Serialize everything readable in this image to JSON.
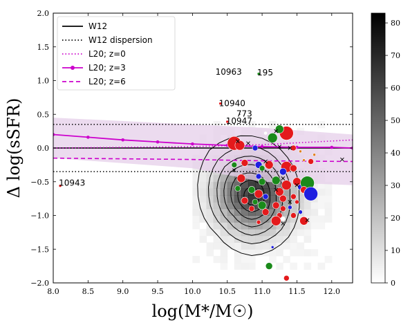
{
  "chart_data": {
    "type": "scatter",
    "xlabel": "log(M*/M☉)",
    "ylabel": "Δ log(sSFR)",
    "xlim": [
      8.0,
      12.3
    ],
    "ylim": [
      -2.0,
      2.0
    ],
    "xticks": [
      8.0,
      8.5,
      9.0,
      9.5,
      10.0,
      10.5,
      11.0,
      11.5,
      12.0
    ],
    "yticks": [
      -2.0,
      -1.5,
      -1.0,
      -0.5,
      0.0,
      0.5,
      1.0,
      1.5,
      2.0
    ],
    "colorbar": {
      "min": 0,
      "max": 83,
      "ticks": [
        0,
        10,
        20,
        30,
        40,
        50,
        60,
        70,
        80
      ],
      "cmap": "Greys"
    },
    "legend": {
      "placement": "top-left",
      "entries": [
        {
          "label": "W12",
          "style": "solid",
          "color": "#000000"
        },
        {
          "label": "W12 dispersion",
          "style": "dotted",
          "color": "#000000"
        },
        {
          "label": "L20; z=0",
          "style": "dotted",
          "color": "#cc00cc"
        },
        {
          "label": "L20; z=3",
          "style": "solid-marker",
          "color": "#cc00cc"
        },
        {
          "label": "L20; z=6",
          "style": "dashed",
          "color": "#cc00cc"
        }
      ]
    },
    "lines": {
      "w12": {
        "y": 0.0
      },
      "w12_dispersion": [
        0.35,
        -0.35
      ],
      "l20_z0": {
        "x": [
          8.0,
          10.0,
          11.0,
          12.3
        ],
        "y": [
          0.0,
          0.02,
          0.05,
          0.12
        ]
      },
      "l20_z3": {
        "x": [
          8.0,
          8.5,
          9.0,
          9.5,
          10.0,
          10.5,
          11.0,
          11.5,
          12.0,
          12.3
        ],
        "y": [
          0.2,
          0.16,
          0.12,
          0.09,
          0.06,
          0.04,
          0.02,
          0.01,
          0.01,
          0.0
        ]
      },
      "l20_z6": {
        "x": [
          8.0,
          9.0,
          10.0,
          11.0,
          12.3
        ],
        "y": [
          -0.15,
          -0.16,
          -0.17,
          -0.19,
          -0.2
        ]
      },
      "band": {
        "x": [
          8.0,
          10.0,
          11.0,
          12.3
        ],
        "upper": [
          0.45,
          0.35,
          0.3,
          0.2
        ],
        "lower": [
          -0.15,
          -0.3,
          -0.5,
          -0.55
        ]
      }
    },
    "annotations": [
      {
        "text": "10963",
        "x": 10.35,
        "y": 1.13
      },
      {
        "text": "195",
        "x": 10.95,
        "y": 1.12
      },
      {
        "text": "10940",
        "x": 10.4,
        "y": 0.66
      },
      {
        "text": "773",
        "x": 10.65,
        "y": 0.51
      },
      {
        "text": "10947",
        "x": 10.5,
        "y": 0.4
      },
      {
        "text": "10943",
        "x": 8.1,
        "y": -0.52
      }
    ],
    "contours": [
      {
        "level": 1,
        "r": [
          0.62,
          0.66,
          0.72,
          0.78,
          0.7,
          0.64,
          0.7,
          0.68
        ]
      },
      {
        "level": 2,
        "r": [
          0.5,
          0.54,
          0.6,
          0.62,
          0.56,
          0.52,
          0.56,
          0.55
        ]
      },
      {
        "level": 3,
        "r": [
          0.4,
          0.44,
          0.48,
          0.5,
          0.45,
          0.42,
          0.46,
          0.44
        ]
      },
      {
        "level": 4,
        "r": [
          0.32,
          0.35,
          0.38,
          0.4,
          0.36,
          0.33,
          0.36,
          0.35
        ]
      },
      {
        "level": 5,
        "r": [
          0.24,
          0.26,
          0.28,
          0.3,
          0.27,
          0.25,
          0.27,
          0.26
        ]
      },
      {
        "level": 6,
        "r": [
          0.16,
          0.18,
          0.19,
          0.2,
          0.18,
          0.17,
          0.18,
          0.18
        ]
      },
      {
        "level": 7,
        "r": [
          0.09,
          0.1,
          0.11,
          0.11,
          0.1,
          0.09,
          0.1,
          0.1
        ]
      }
    ],
    "contour_center": {
      "x": 10.85,
      "y": -0.72
    },
    "points": [
      {
        "x": 8.1,
        "y": -0.56,
        "c": "red",
        "s": 2
      },
      {
        "x": 10.4,
        "y": 0.66,
        "c": "red",
        "s": 2
      },
      {
        "x": 10.5,
        "y": 0.39,
        "c": "red",
        "s": 2
      },
      {
        "x": 10.37,
        "y": 1.12,
        "c": "black",
        "s": 1
      },
      {
        "x": 10.95,
        "y": 1.1,
        "c": "green",
        "s": 2
      },
      {
        "x": 10.68,
        "y": 0.5,
        "c": "black",
        "s": 1
      },
      {
        "x": 10.6,
        "y": 0.07,
        "c": "red",
        "s": 10
      },
      {
        "x": 10.68,
        "y": 0.04,
        "c": "red",
        "s": 7
      },
      {
        "x": 11.35,
        "y": 0.22,
        "c": "red",
        "s": 10
      },
      {
        "x": 11.15,
        "y": 0.15,
        "c": "green",
        "s": 7
      },
      {
        "x": 11.25,
        "y": 0.28,
        "c": "green",
        "s": 6
      },
      {
        "x": 11.05,
        "y": 0.22,
        "c": "white",
        "s": 2
      },
      {
        "x": 10.9,
        "y": 0.0,
        "c": "blue",
        "s": 4
      },
      {
        "x": 11.45,
        "y": 0.0,
        "c": "red",
        "s": 4
      },
      {
        "x": 11.55,
        "y": -0.05,
        "c": "orange",
        "s": 2
      },
      {
        "x": 10.95,
        "y": -0.25,
        "c": "blue",
        "s": 5
      },
      {
        "x": 10.6,
        "y": -0.25,
        "c": "green",
        "s": 4
      },
      {
        "x": 10.75,
        "y": -0.22,
        "c": "red",
        "s": 5
      },
      {
        "x": 11.1,
        "y": -0.25,
        "c": "red",
        "s": 6
      },
      {
        "x": 11.35,
        "y": -0.28,
        "c": "red",
        "s": 8
      },
      {
        "x": 11.45,
        "y": -0.3,
        "c": "red",
        "s": 5
      },
      {
        "x": 11.7,
        "y": -0.2,
        "c": "red",
        "s": 4
      },
      {
        "x": 11.3,
        "y": -0.35,
        "c": "blue",
        "s": 5
      },
      {
        "x": 10.7,
        "y": -0.45,
        "c": "red",
        "s": 6
      },
      {
        "x": 10.95,
        "y": -0.42,
        "c": "blue",
        "s": 4
      },
      {
        "x": 11.0,
        "y": -0.5,
        "c": "green",
        "s": 5
      },
      {
        "x": 11.2,
        "y": -0.48,
        "c": "green",
        "s": 6
      },
      {
        "x": 11.35,
        "y": -0.55,
        "c": "red",
        "s": 7
      },
      {
        "x": 11.5,
        "y": -0.5,
        "c": "red",
        "s": 6
      },
      {
        "x": 11.55,
        "y": -0.58,
        "c": "blue",
        "s": 4
      },
      {
        "x": 11.65,
        "y": -0.52,
        "c": "green",
        "s": 10
      },
      {
        "x": 11.6,
        "y": -0.62,
        "c": "red",
        "s": 5
      },
      {
        "x": 11.7,
        "y": -0.68,
        "c": "blue",
        "s": 10
      },
      {
        "x": 10.65,
        "y": -0.6,
        "c": "green",
        "s": 4
      },
      {
        "x": 10.85,
        "y": -0.62,
        "c": "green",
        "s": 5
      },
      {
        "x": 10.95,
        "y": -0.68,
        "c": "red",
        "s": 6
      },
      {
        "x": 11.05,
        "y": -0.72,
        "c": "blue",
        "s": 4
      },
      {
        "x": 11.25,
        "y": -0.65,
        "c": "red",
        "s": 6
      },
      {
        "x": 11.3,
        "y": -0.75,
        "c": "red",
        "s": 5
      },
      {
        "x": 11.45,
        "y": -0.72,
        "c": "red",
        "s": 4
      },
      {
        "x": 11.5,
        "y": -0.8,
        "c": "red",
        "s": 3
      },
      {
        "x": 10.75,
        "y": -0.78,
        "c": "red",
        "s": 5
      },
      {
        "x": 10.9,
        "y": -0.8,
        "c": "green",
        "s": 4
      },
      {
        "x": 11.0,
        "y": -0.85,
        "c": "green",
        "s": 6
      },
      {
        "x": 11.2,
        "y": -0.85,
        "c": "red",
        "s": 5
      },
      {
        "x": 11.3,
        "y": -0.9,
        "c": "red",
        "s": 4
      },
      {
        "x": 11.4,
        "y": -0.88,
        "c": "blue",
        "s": 3
      },
      {
        "x": 10.85,
        "y": -0.9,
        "c": "red",
        "s": 4
      },
      {
        "x": 11.05,
        "y": -0.95,
        "c": "red",
        "s": 5
      },
      {
        "x": 11.25,
        "y": -1.0,
        "c": "red",
        "s": 4
      },
      {
        "x": 11.3,
        "y": -1.05,
        "c": "white",
        "s": 3
      },
      {
        "x": 11.2,
        "y": -1.08,
        "c": "red",
        "s": 7
      },
      {
        "x": 11.45,
        "y": -1.0,
        "c": "red",
        "s": 4
      },
      {
        "x": 11.6,
        "y": -1.08,
        "c": "red",
        "s": 6
      },
      {
        "x": 11.55,
        "y": -0.95,
        "c": "blue",
        "s": 3
      },
      {
        "x": 10.95,
        "y": -1.1,
        "c": "red",
        "s": 3
      },
      {
        "x": 11.0,
        "y": -0.3,
        "c": "green",
        "s": 4
      },
      {
        "x": 11.15,
        "y": -1.47,
        "c": "blue",
        "s": 2
      },
      {
        "x": 11.1,
        "y": -1.75,
        "c": "green",
        "s": 5
      },
      {
        "x": 11.35,
        "y": -1.93,
        "c": "red",
        "s": 4
      },
      {
        "x": 11.75,
        "y": -0.1,
        "c": "orange",
        "s": 2
      },
      {
        "x": 11.6,
        "y": -0.18,
        "c": "orange",
        "s": 2
      }
    ],
    "crosses": [
      {
        "x": 10.65,
        "y": 0.1
      },
      {
        "x": 10.8,
        "y": 0.07
      },
      {
        "x": 11.2,
        "y": 0.25
      },
      {
        "x": 11.25,
        "y": 0.02
      },
      {
        "x": 11.4,
        "y": 0.0
      },
      {
        "x": 12.15,
        "y": -0.17
      },
      {
        "x": 10.6,
        "y": -0.33
      },
      {
        "x": 11.05,
        "y": -0.2
      },
      {
        "x": 11.3,
        "y": -0.45
      },
      {
        "x": 11.5,
        "y": -0.55
      },
      {
        "x": 11.4,
        "y": -0.8
      },
      {
        "x": 11.65,
        "y": -1.07
      },
      {
        "x": 11.3,
        "y": -1.12
      },
      {
        "x": 11.2,
        "y": -0.62
      }
    ]
  }
}
